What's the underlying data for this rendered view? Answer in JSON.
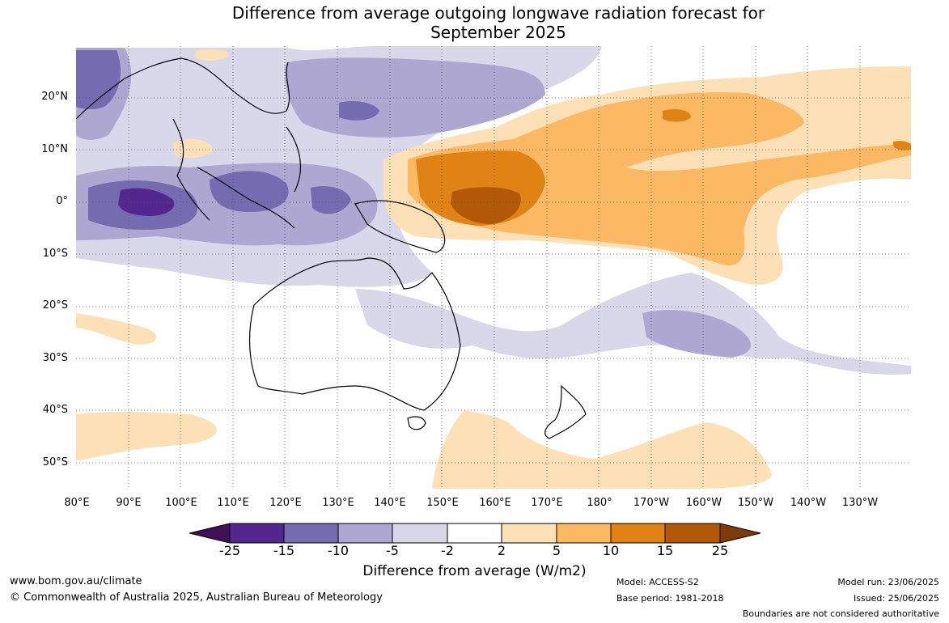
{
  "title_line1": "Difference from average outgoing longwave radiation forecast for",
  "title_line2": "September 2025",
  "lat_labels": [
    "20°N",
    "10°N",
    "0°",
    "10°S",
    "20°S",
    "30°S",
    "40°S",
    "50°S"
  ],
  "lon_labels": [
    "80°E",
    "90°E",
    "100°E",
    "110°E",
    "120°E",
    "130°E",
    "140°E",
    "150°E",
    "160°E",
    "170°E",
    "180°",
    "170°W",
    "160°W",
    "150°W",
    "140°W",
    "130°W"
  ],
  "colorbar": {
    "labels": [
      "-25",
      "-15",
      "-10",
      "-5",
      "-2",
      "2",
      "5",
      "10",
      "15",
      "25"
    ],
    "colors": [
      "#3f0f5a",
      "#54278f",
      "#756bb1",
      "#aea7d1",
      "#d8d8ea",
      "#ffffff",
      "#fee0b6",
      "#fdb863",
      "#e08214",
      "#b35806",
      "#7f3b08"
    ],
    "title": "Difference from average (W/m2)"
  },
  "footer": {
    "website": "www.bom.gov.au/climate",
    "copyright": "© Commonwealth of Australia 2025, Australian Bureau of Meteorology",
    "model": "Model: ACCESS-S2",
    "base_period": "Base period: 1981-2018",
    "model_run": "Model run: 23/06/2025",
    "issued": "Issued: 25/06/2025",
    "disclaimer": "Boundaries are not considered authoritative"
  }
}
